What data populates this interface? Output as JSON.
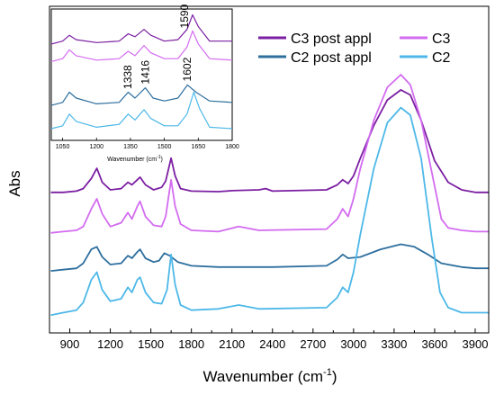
{
  "chart_data": {
    "type": "line",
    "xlabel": "Wavenumber (cm",
    "xlabel_sup": "-1",
    "xlabel_end": ")",
    "ylabel": "Abs",
    "xlim": [
      750,
      4000
    ],
    "xticks": [
      900,
      1200,
      1500,
      1800,
      2100,
      2400,
      2700,
      3000,
      3300,
      3600,
      3900
    ],
    "yticks_shown": false,
    "legend_position": "top-right",
    "series": [
      {
        "name": "C3 post appl",
        "color": "#7b1fa2",
        "points": [
          [
            760,
            0.335
          ],
          [
            850,
            0.335
          ],
          [
            950,
            0.34
          ],
          [
            1000,
            0.35
          ],
          [
            1060,
            0.39
          ],
          [
            1100,
            0.43
          ],
          [
            1140,
            0.375
          ],
          [
            1200,
            0.345
          ],
          [
            1280,
            0.35
          ],
          [
            1330,
            0.375
          ],
          [
            1360,
            0.365
          ],
          [
            1400,
            0.385
          ],
          [
            1420,
            0.395
          ],
          [
            1460,
            0.365
          ],
          [
            1520,
            0.345
          ],
          [
            1580,
            0.355
          ],
          [
            1610,
            0.38
          ],
          [
            1650,
            0.47
          ],
          [
            1680,
            0.4
          ],
          [
            1720,
            0.35
          ],
          [
            1800,
            0.34
          ],
          [
            2000,
            0.338
          ],
          [
            2100,
            0.342
          ],
          [
            2300,
            0.345
          ],
          [
            2350,
            0.35
          ],
          [
            2400,
            0.34
          ],
          [
            2800,
            0.345
          ],
          [
            2880,
            0.365
          ],
          [
            2920,
            0.385
          ],
          [
            2960,
            0.37
          ],
          [
            3000,
            0.4
          ],
          [
            3050,
            0.47
          ],
          [
            3150,
            0.6
          ],
          [
            3250,
            0.7
          ],
          [
            3350,
            0.74
          ],
          [
            3420,
            0.72
          ],
          [
            3500,
            0.62
          ],
          [
            3600,
            0.46
          ],
          [
            3700,
            0.375
          ],
          [
            3800,
            0.345
          ],
          [
            3900,
            0.335
          ],
          [
            4000,
            0.335
          ]
        ]
      },
      {
        "name": "C3",
        "color": "#d36cf0",
        "points": [
          [
            760,
            0.175
          ],
          [
            850,
            0.18
          ],
          [
            950,
            0.185
          ],
          [
            1000,
            0.2
          ],
          [
            1060,
            0.27
          ],
          [
            1100,
            0.31
          ],
          [
            1140,
            0.25
          ],
          [
            1200,
            0.2
          ],
          [
            1280,
            0.215
          ],
          [
            1330,
            0.255
          ],
          [
            1360,
            0.23
          ],
          [
            1400,
            0.28
          ],
          [
            1420,
            0.3
          ],
          [
            1460,
            0.24
          ],
          [
            1520,
            0.205
          ],
          [
            1580,
            0.2
          ],
          [
            1610,
            0.24
          ],
          [
            1650,
            0.385
          ],
          [
            1680,
            0.28
          ],
          [
            1720,
            0.21
          ],
          [
            1800,
            0.185
          ],
          [
            2000,
            0.18
          ],
          [
            2150,
            0.2
          ],
          [
            2300,
            0.185
          ],
          [
            2800,
            0.19
          ],
          [
            2880,
            0.23
          ],
          [
            2920,
            0.27
          ],
          [
            2960,
            0.24
          ],
          [
            3000,
            0.31
          ],
          [
            3050,
            0.43
          ],
          [
            3150,
            0.62
          ],
          [
            3250,
            0.75
          ],
          [
            3350,
            0.8
          ],
          [
            3420,
            0.76
          ],
          [
            3500,
            0.62
          ],
          [
            3600,
            0.36
          ],
          [
            3650,
            0.23
          ],
          [
            3700,
            0.195
          ],
          [
            3800,
            0.185
          ],
          [
            3900,
            0.18
          ],
          [
            4000,
            0.18
          ]
        ]
      },
      {
        "name": "C2 post appl",
        "color": "#2e6f9e",
        "points": [
          [
            760,
            0.025
          ],
          [
            850,
            0.03
          ],
          [
            950,
            0.035
          ],
          [
            1000,
            0.055
          ],
          [
            1060,
            0.11
          ],
          [
            1100,
            0.12
          ],
          [
            1140,
            0.08
          ],
          [
            1200,
            0.05
          ],
          [
            1280,
            0.055
          ],
          [
            1330,
            0.085
          ],
          [
            1360,
            0.075
          ],
          [
            1400,
            0.1
          ],
          [
            1420,
            0.11
          ],
          [
            1460,
            0.075
          ],
          [
            1520,
            0.06
          ],
          [
            1560,
            0.065
          ],
          [
            1600,
            0.095
          ],
          [
            1640,
            0.085
          ],
          [
            1700,
            0.06
          ],
          [
            1800,
            0.045
          ],
          [
            2000,
            0.04
          ],
          [
            2200,
            0.04
          ],
          [
            2400,
            0.04
          ],
          [
            2800,
            0.045
          ],
          [
            2880,
            0.07
          ],
          [
            2920,
            0.09
          ],
          [
            2960,
            0.075
          ],
          [
            3050,
            0.08
          ],
          [
            3200,
            0.11
          ],
          [
            3350,
            0.13
          ],
          [
            3450,
            0.12
          ],
          [
            3550,
            0.09
          ],
          [
            3650,
            0.055
          ],
          [
            3800,
            0.04
          ],
          [
            3900,
            0.035
          ],
          [
            4000,
            0.035
          ]
        ]
      },
      {
        "name": "C2",
        "color": "#4db8e8",
        "points": [
          [
            760,
            -0.15
          ],
          [
            850,
            -0.14
          ],
          [
            950,
            -0.13
          ],
          [
            1000,
            -0.1
          ],
          [
            1060,
            -0.01
          ],
          [
            1100,
            0.02
          ],
          [
            1140,
            -0.05
          ],
          [
            1200,
            -0.095
          ],
          [
            1280,
            -0.085
          ],
          [
            1330,
            -0.04
          ],
          [
            1360,
            -0.06
          ],
          [
            1400,
            -0.01
          ],
          [
            1420,
            0.0
          ],
          [
            1460,
            -0.06
          ],
          [
            1520,
            -0.1
          ],
          [
            1580,
            -0.105
          ],
          [
            1620,
            -0.05
          ],
          [
            1650,
            0.09
          ],
          [
            1680,
            -0.03
          ],
          [
            1720,
            -0.11
          ],
          [
            1800,
            -0.13
          ],
          [
            2000,
            -0.125
          ],
          [
            2150,
            -0.11
          ],
          [
            2300,
            -0.125
          ],
          [
            2800,
            -0.12
          ],
          [
            2880,
            -0.08
          ],
          [
            2920,
            -0.04
          ],
          [
            2960,
            -0.06
          ],
          [
            3000,
            0.02
          ],
          [
            3050,
            0.17
          ],
          [
            3150,
            0.43
          ],
          [
            3250,
            0.61
          ],
          [
            3350,
            0.67
          ],
          [
            3420,
            0.64
          ],
          [
            3500,
            0.47
          ],
          [
            3580,
            0.15
          ],
          [
            3640,
            -0.06
          ],
          [
            3700,
            -0.12
          ],
          [
            3800,
            -0.14
          ],
          [
            3900,
            -0.14
          ],
          [
            4000,
            -0.14
          ]
        ]
      }
    ],
    "inset": {
      "xlim": [
        1000,
        1800
      ],
      "xticks": [
        1050,
        1200,
        1350,
        1500,
        1650,
        1800
      ],
      "xlabel": "Wavenumber (cm",
      "xlabel_sup": "-1",
      "xlabel_end": ")",
      "annotations": [
        {
          "text": "1590",
          "x": 1590,
          "target": "C3 post appl"
        },
        {
          "text": "1338",
          "x": 1338,
          "target": "C2 post appl"
        },
        {
          "text": "1416",
          "x": 1416,
          "target": "C2 post appl"
        },
        {
          "text": "1602",
          "x": 1602,
          "target": "C2 post appl"
        }
      ],
      "series": [
        {
          "ref": "C3 post appl",
          "points": [
            [
              1000,
              0.78
            ],
            [
              1050,
              0.8
            ],
            [
              1080,
              0.84
            ],
            [
              1110,
              0.81
            ],
            [
              1200,
              0.79
            ],
            [
              1300,
              0.8
            ],
            [
              1340,
              0.85
            ],
            [
              1370,
              0.83
            ],
            [
              1410,
              0.88
            ],
            [
              1440,
              0.84
            ],
            [
              1500,
              0.8
            ],
            [
              1560,
              0.81
            ],
            [
              1600,
              0.88
            ],
            [
              1625,
              0.98
            ],
            [
              1650,
              0.9
            ],
            [
              1700,
              0.8
            ],
            [
              1800,
              0.8
            ]
          ]
        },
        {
          "ref": "C3",
          "points": [
            [
              1000,
              0.66
            ],
            [
              1050,
              0.68
            ],
            [
              1080,
              0.74
            ],
            [
              1110,
              0.7
            ],
            [
              1200,
              0.67
            ],
            [
              1300,
              0.68
            ],
            [
              1340,
              0.73
            ],
            [
              1370,
              0.7
            ],
            [
              1410,
              0.77
            ],
            [
              1440,
              0.72
            ],
            [
              1500,
              0.68
            ],
            [
              1560,
              0.68
            ],
            [
              1600,
              0.76
            ],
            [
              1625,
              0.87
            ],
            [
              1650,
              0.78
            ],
            [
              1700,
              0.68
            ],
            [
              1800,
              0.67
            ]
          ]
        },
        {
          "ref": "C2 post appl",
          "points": [
            [
              1000,
              0.36
            ],
            [
              1050,
              0.38
            ],
            [
              1080,
              0.45
            ],
            [
              1110,
              0.41
            ],
            [
              1200,
              0.37
            ],
            [
              1300,
              0.38
            ],
            [
              1340,
              0.45
            ],
            [
              1370,
              0.41
            ],
            [
              1416,
              0.48
            ],
            [
              1450,
              0.41
            ],
            [
              1500,
              0.39
            ],
            [
              1560,
              0.41
            ],
            [
              1602,
              0.5
            ],
            [
              1640,
              0.45
            ],
            [
              1700,
              0.39
            ],
            [
              1800,
              0.38
            ]
          ]
        },
        {
          "ref": "C2",
          "points": [
            [
              1000,
              0.2
            ],
            [
              1050,
              0.22
            ],
            [
              1080,
              0.3
            ],
            [
              1110,
              0.25
            ],
            [
              1200,
              0.21
            ],
            [
              1300,
              0.23
            ],
            [
              1340,
              0.3
            ],
            [
              1370,
              0.26
            ],
            [
              1410,
              0.33
            ],
            [
              1440,
              0.27
            ],
            [
              1500,
              0.22
            ],
            [
              1560,
              0.22
            ],
            [
              1600,
              0.3
            ],
            [
              1630,
              0.45
            ],
            [
              1655,
              0.34
            ],
            [
              1700,
              0.21
            ],
            [
              1800,
              0.2
            ]
          ]
        }
      ]
    }
  }
}
